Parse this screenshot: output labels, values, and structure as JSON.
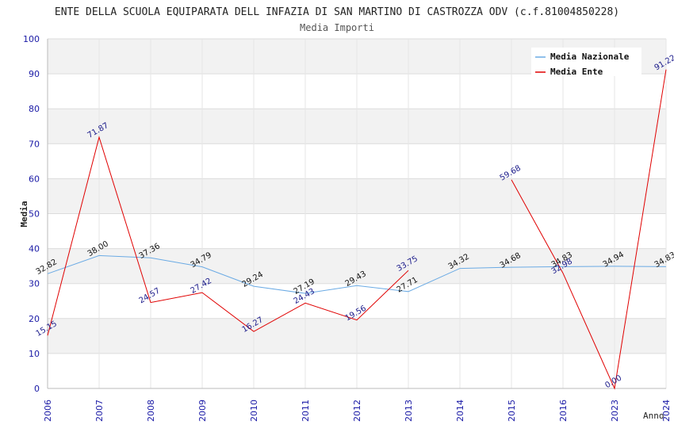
{
  "chart_data": {
    "type": "line",
    "title": "ENTE DELLA SCUOLA EQUIPARATA DELL INFAZIA DI SAN MARTINO DI CASTROZZA ODV (c.f.81004850228)",
    "subtitle": "Media Importi",
    "ylabel": "Media",
    "xlabel": "Anno",
    "ylim": [
      0,
      100
    ],
    "yticks": [
      "0",
      "10",
      "20",
      "30",
      "40",
      "50",
      "60",
      "70",
      "80",
      "90",
      "100"
    ],
    "categories": [
      "2006",
      "2007",
      "2008",
      "2009",
      "2010",
      "2011",
      "2012",
      "2013",
      "2014",
      "2015",
      "2016",
      "2023",
      "2024"
    ],
    "legend_position": "top-right",
    "series": [
      {
        "name": "Media Nazionale",
        "color": "#6aaae4",
        "values": [
          32.82,
          38.0,
          37.36,
          34.79,
          29.24,
          27.19,
          29.43,
          27.71,
          34.32,
          34.68,
          34.83,
          34.94,
          34.83
        ],
        "labels": [
          "32.82",
          "38.00",
          "37.36",
          "34.79",
          "29.24",
          "27.19",
          "29.43",
          "27.71",
          "34.32",
          "34.68",
          "34.83",
          "34.94",
          "34.83"
        ]
      },
      {
        "name": "Media Ente",
        "color": "#e00000",
        "values": [
          15.15,
          71.87,
          24.57,
          27.42,
          16.27,
          24.43,
          19.56,
          33.75,
          null,
          59.68,
          32.98,
          0.0,
          91.22
        ],
        "labels": [
          "15.15",
          "71.87",
          "24.57",
          "27.42",
          "16.27",
          "24.43",
          "19.56",
          "33.75",
          "",
          "59.68",
          "32.98",
          "0.00",
          "91.22"
        ]
      }
    ]
  }
}
